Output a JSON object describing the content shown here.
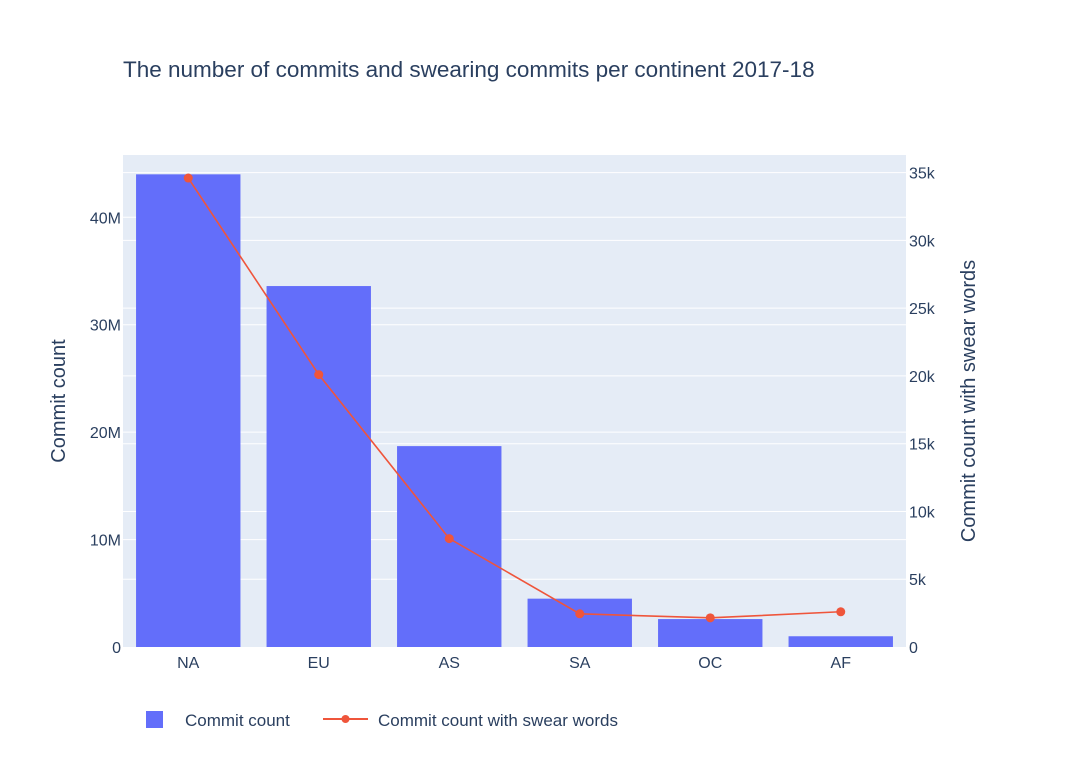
{
  "chart_data": {
    "type": "bar+line",
    "title": "The number of commits and swearing commits per continent 2017-18",
    "categories": [
      "NA",
      "EU",
      "AS",
      "SA",
      "OC",
      "AF"
    ],
    "series": [
      {
        "name": "Commit count",
        "type": "bar",
        "axis": "left",
        "values": [
          44000000,
          33600000,
          18700000,
          4500000,
          2600000,
          1000000
        ]
      },
      {
        "name": "Commit count with swear words",
        "type": "line",
        "axis": "right",
        "values": [
          34600,
          20100,
          8000,
          2450,
          2150,
          2600
        ]
      }
    ],
    "ylabel": "Commit count",
    "y2label": "Commit count with swear words",
    "ylim": [
      0,
      45800000
    ],
    "y2lim": [
      0,
      36300
    ],
    "yticks": [
      0,
      10000000,
      20000000,
      30000000,
      40000000
    ],
    "ytick_labels": [
      "0",
      "10M",
      "20M",
      "30M",
      "40M"
    ],
    "y2ticks": [
      0,
      5000,
      10000,
      15000,
      20000,
      25000,
      30000,
      35000
    ],
    "y2tick_labels": [
      "0",
      "5k",
      "10k",
      "15k",
      "20k",
      "25k",
      "30k",
      "35k"
    ],
    "legend_position": "bottom",
    "colors": {
      "bar": "#636efa",
      "line": "#ef553b",
      "plot_bg": "#e5ecf6",
      "grid": "#ffffff",
      "text": "#2a3f5f"
    }
  }
}
